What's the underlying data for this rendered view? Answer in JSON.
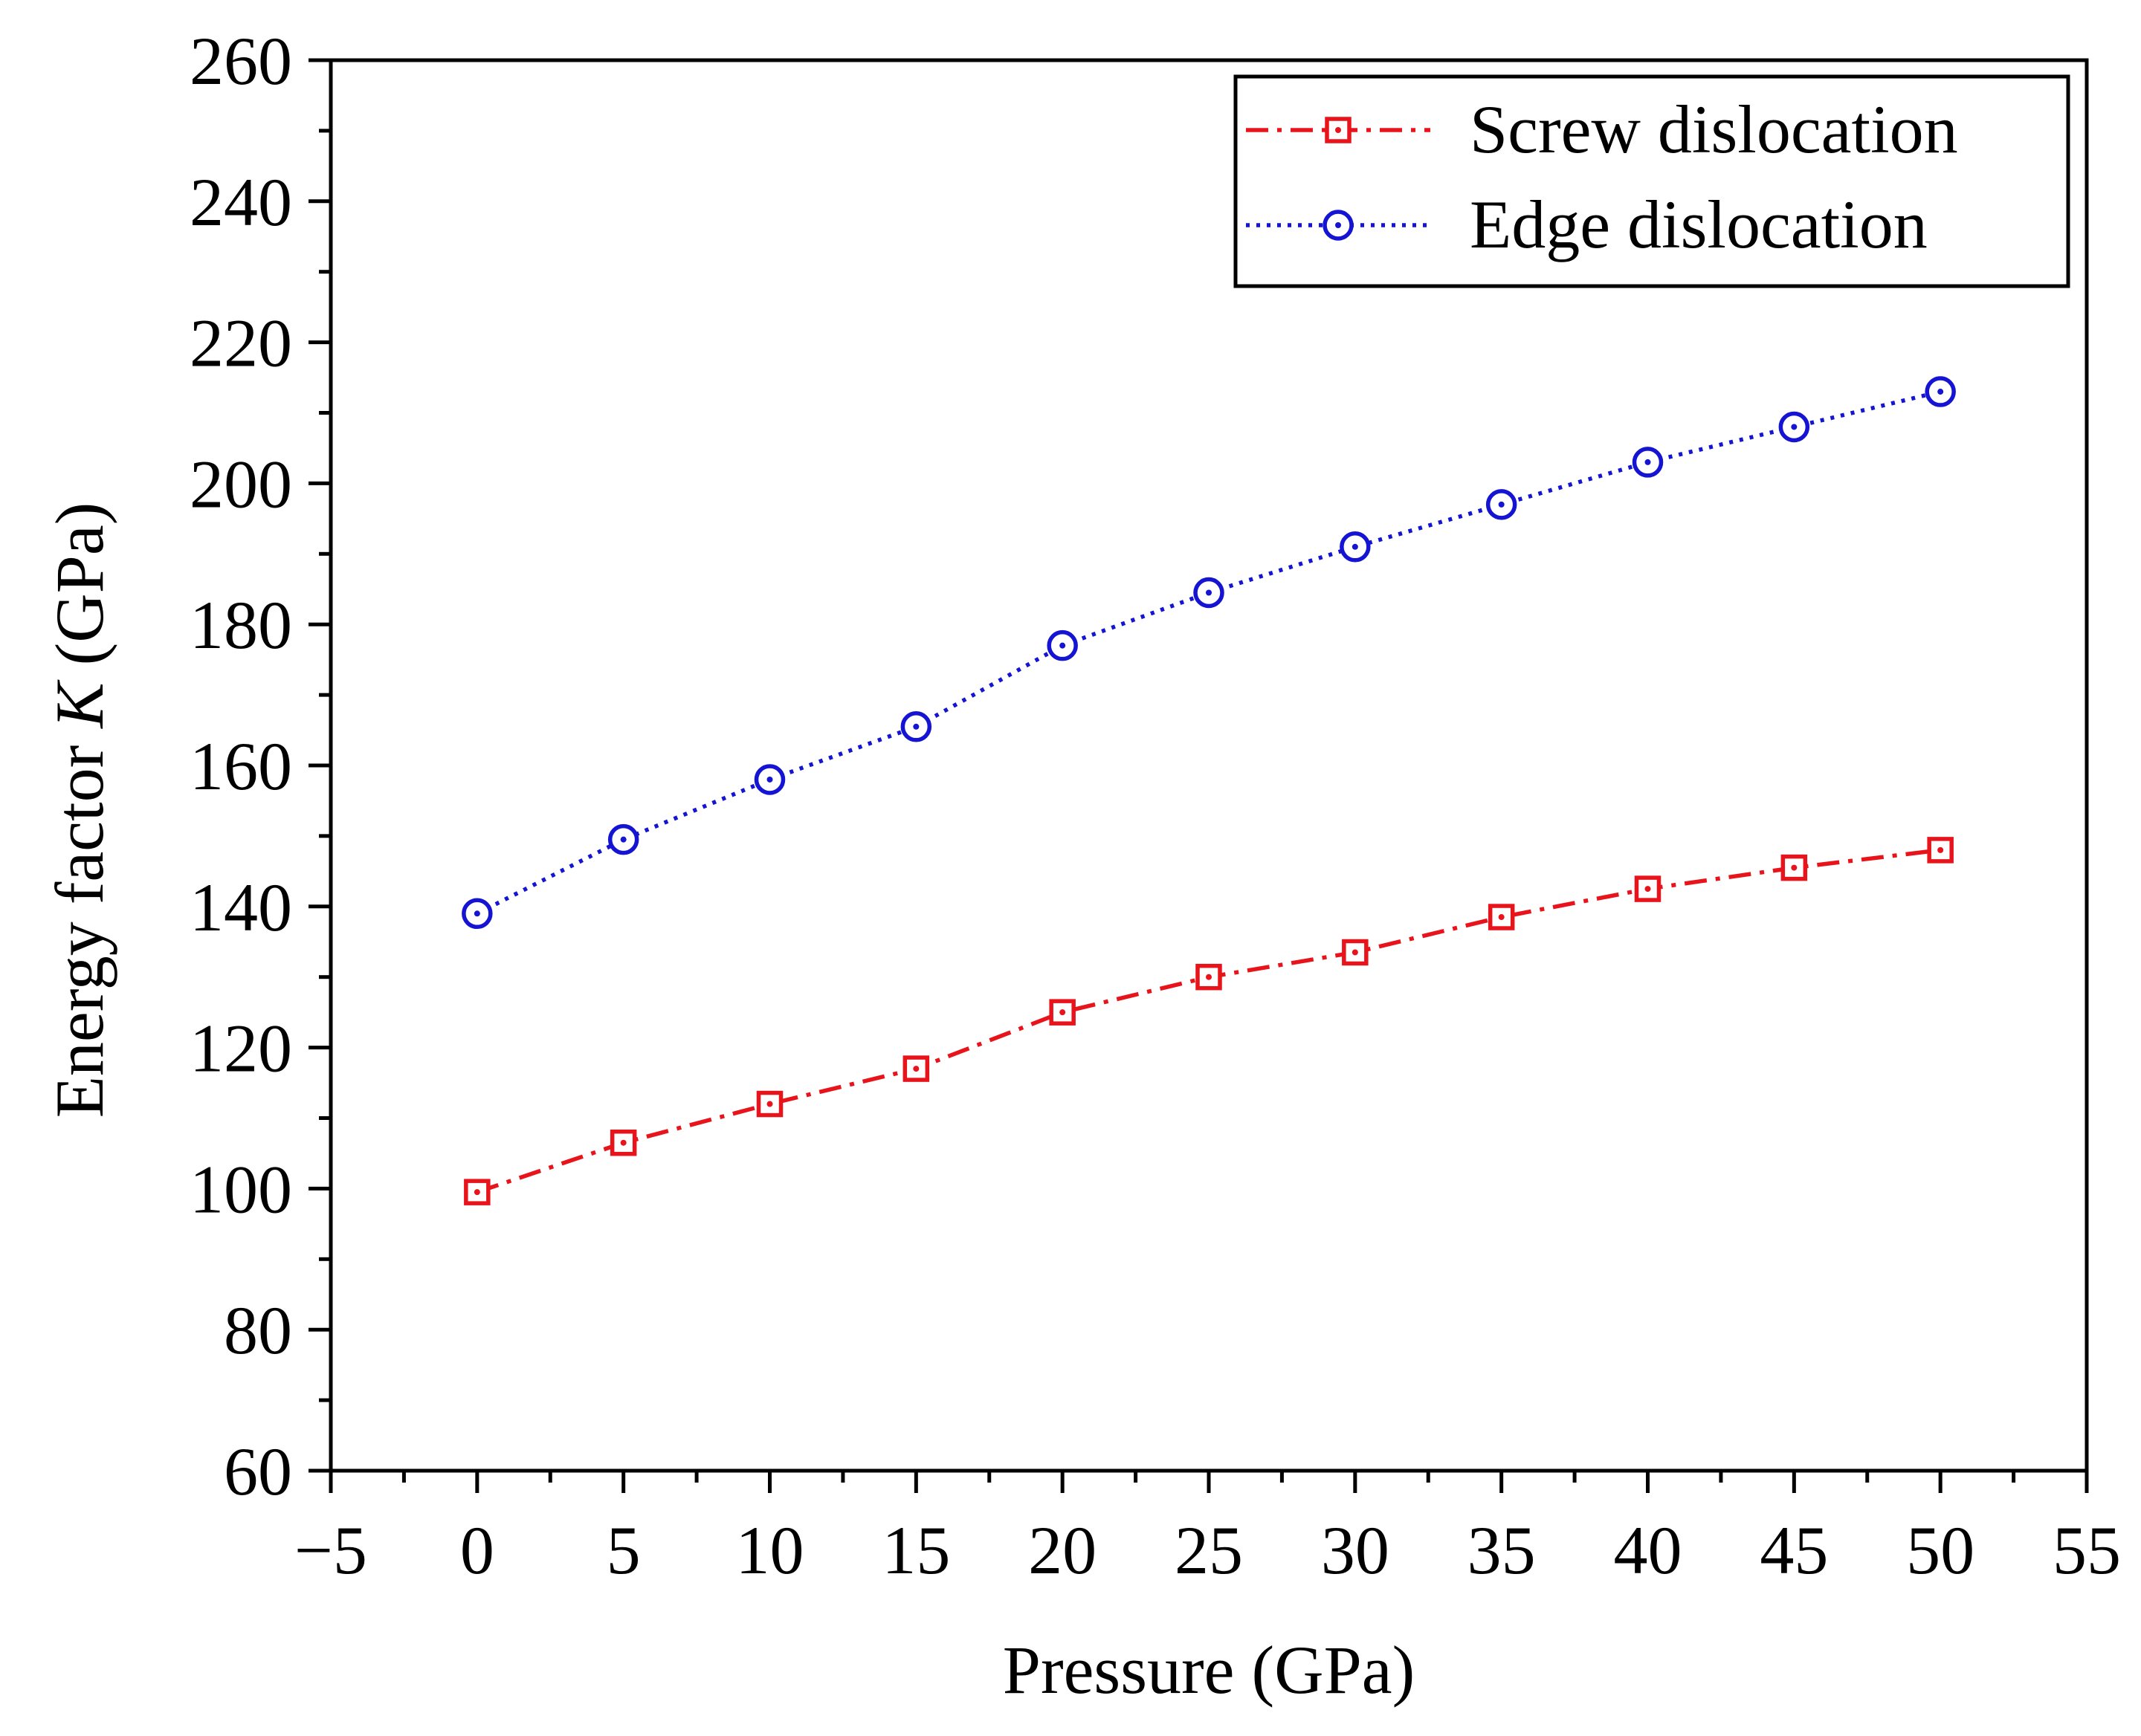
{
  "chart_data": {
    "type": "line",
    "title": "",
    "xlabel": "Pressure (GPa)",
    "ylabel_prefix": "Energy factor ",
    "ylabel_symbol": "K",
    "ylabel_suffix": " (GPa)",
    "xlim": [
      -5,
      55
    ],
    "ylim": [
      60,
      260
    ],
    "x_ticks": [
      -5,
      0,
      5,
      10,
      15,
      20,
      25,
      30,
      35,
      40,
      45,
      50,
      55
    ],
    "x_tick_labels": [
      "−5",
      "0",
      "5",
      "10",
      "15",
      "20",
      "25",
      "30",
      "35",
      "40",
      "45",
      "50",
      "55"
    ],
    "y_ticks": [
      60,
      80,
      100,
      120,
      140,
      160,
      180,
      200,
      220,
      240,
      260
    ],
    "y_tick_labels": [
      "60",
      "80",
      "100",
      "120",
      "140",
      "160",
      "180",
      "200",
      "220",
      "240",
      "260"
    ],
    "grid": false,
    "legend_position": "top-right",
    "x": [
      0,
      5,
      10,
      15,
      20,
      25,
      30,
      35,
      40,
      45,
      50
    ],
    "series": [
      {
        "name": "Screw dislocation",
        "color": "#e8141c",
        "line_style": "dash-dot",
        "marker": "square-with-center-dot",
        "values": [
          99.5,
          106.5,
          112,
          117,
          125,
          130,
          133.5,
          138.5,
          142.5,
          145.5,
          148
        ]
      },
      {
        "name": "Edge dislocation",
        "color": "#1414d2",
        "line_style": "dotted",
        "marker": "circle-with-center-dot",
        "values": [
          139,
          149.5,
          158,
          165.5,
          177,
          184.5,
          191,
          197,
          203,
          208,
          213
        ]
      }
    ]
  }
}
